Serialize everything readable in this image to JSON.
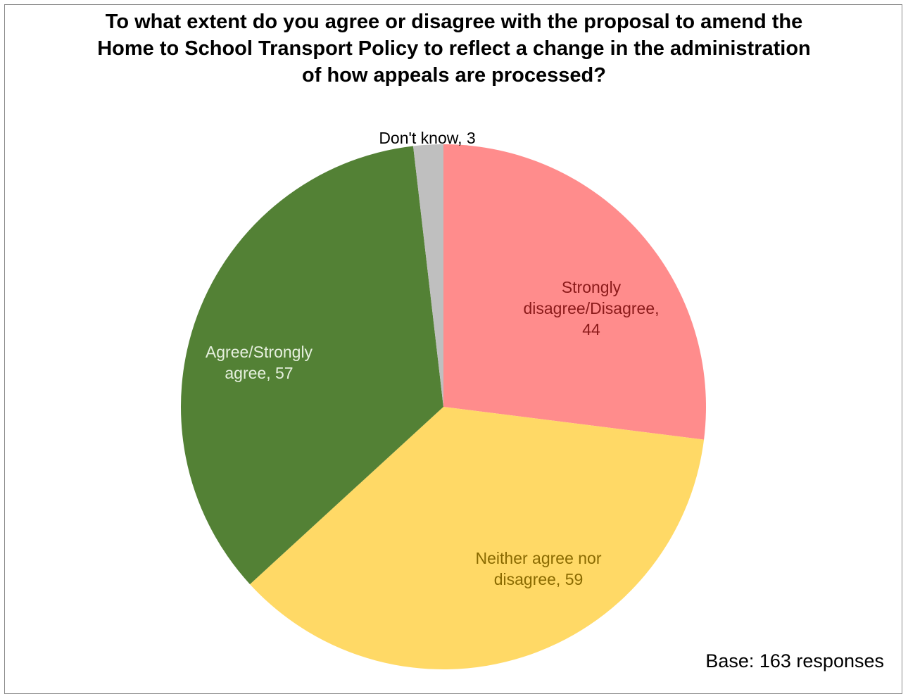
{
  "chart_data": {
    "type": "pie",
    "title_lines": [
      "To what extent do you agree or disagree with the proposal to amend the",
      "Home to School Transport Policy to reflect a change in the administration",
      "of how appeals are processed?"
    ],
    "start": "top",
    "direction": "clockwise",
    "slices": [
      {
        "category": "Strongly disagree/Disagree",
        "value": 44,
        "label_lines": [
          "Strongly",
          "disagree/Disagree,",
          "44"
        ],
        "color": "#FF8C8C",
        "label_color": "#8B1A1A"
      },
      {
        "category": "Neither agree nor disagree",
        "value": 59,
        "label_lines": [
          "Neither agree nor",
          "disagree, 59"
        ],
        "color": "#FFD966",
        "label_color": "#8A6A00"
      },
      {
        "category": "Agree/Strongly agree",
        "value": 57,
        "label_lines": [
          "Agree/Strongly",
          "agree, 57"
        ],
        "color": "#538135",
        "label_color": "#E6F0DE"
      },
      {
        "category": "Don't know",
        "value": 3,
        "label_lines": [
          "Don't know, 3"
        ],
        "color": "#BFBFBF",
        "label_color": "#000000"
      }
    ],
    "note": "Base: 163 responses"
  }
}
